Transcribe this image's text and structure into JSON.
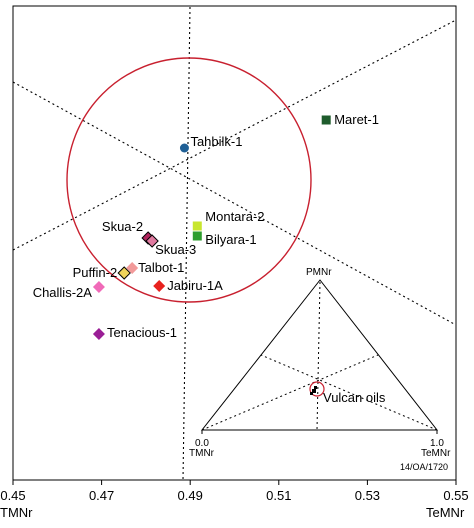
{
  "chart_data": {
    "type": "scatter",
    "title": "",
    "xlabel": "",
    "ylabel": "",
    "x_axis": {
      "min": 0.45,
      "max": 0.55,
      "ticks": [
        "0.45",
        "0.47",
        "0.49",
        "0.51",
        "0.53",
        "0.55"
      ],
      "left_label": "TMNr",
      "right_label": "TeMNr"
    },
    "colors": {
      "circle": "#c8202f",
      "dotted": "#000000"
    },
    "points": [
      {
        "label": "Maret-1",
        "x": 0.5207,
        "marker": "square",
        "color": "#1e5c2c"
      },
      {
        "label": "Tahbilk-1",
        "x": 0.4887,
        "marker": "circle",
        "color": "#1f5f95"
      },
      {
        "label": "Montara-2",
        "x": 0.4916,
        "marker": "square",
        "color": "#c8e62e"
      },
      {
        "label": "Bilyara-1",
        "x": 0.4916,
        "marker": "square",
        "color": "#2e9e2e"
      },
      {
        "label": "Skua-2",
        "x": 0.4805,
        "marker": "diamond",
        "color": "#b0265e"
      },
      {
        "label": "Skua-3",
        "x": 0.4814,
        "marker": "diamond",
        "color": "#e07aa0"
      },
      {
        "label": "Talbot-1",
        "x": 0.4769,
        "marker": "diamond",
        "color": "#f29a9a"
      },
      {
        "label": "Puffin-2",
        "x": 0.4751,
        "marker": "diamond",
        "color": "#f0d45a"
      },
      {
        "label": "Jabiru-1A",
        "x": 0.483,
        "marker": "diamond",
        "color": "#e8221e"
      },
      {
        "label": "Challis-2A",
        "x": 0.4694,
        "marker": "diamond",
        "color": "#f06ab8"
      },
      {
        "label": "Tenacious-1",
        "x": 0.4694,
        "marker": "diamond",
        "color": "#9a1e96"
      }
    ],
    "inset": {
      "type": "ternary",
      "apex_top": "PMNr",
      "left_value": "0.0",
      "left_label": "TMNr",
      "right_value": "1.0",
      "right_label": "TeMNr",
      "annotation": "Vulcan oils"
    },
    "footnote": "14/OA/1720"
  }
}
